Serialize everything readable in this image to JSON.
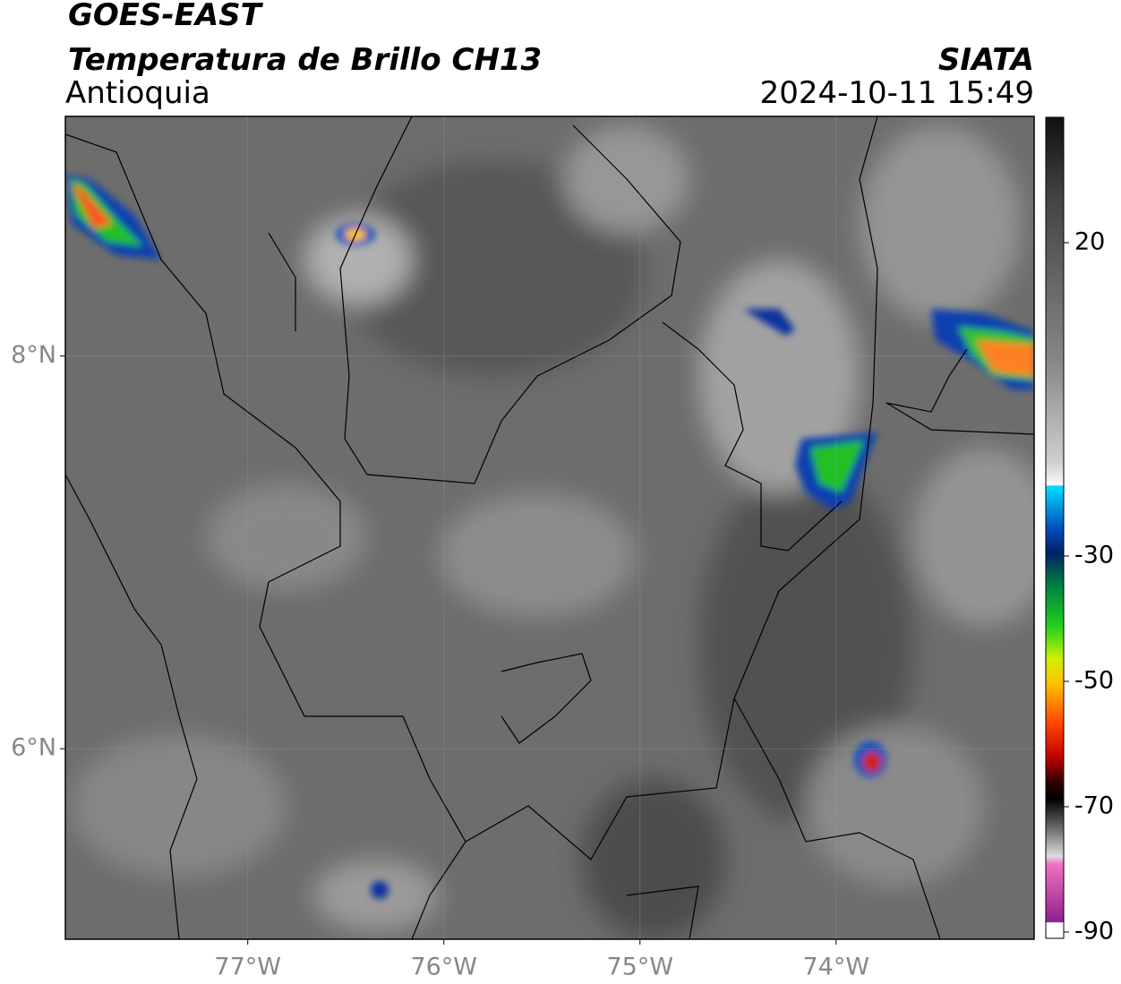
{
  "header": {
    "title": "GOES-EAST",
    "subtitle": "Temperatura de Brillo CH13",
    "region": "Antioquia",
    "source": "SIATA",
    "datetime": "2024-10-11 15:49"
  },
  "map": {
    "xlim": [
      -77.93,
      -72.99
    ],
    "ylim": [
      5.03,
      9.22
    ],
    "xticks": [
      {
        "value": -77,
        "label": "77°W"
      },
      {
        "value": -76,
        "label": "76°W"
      },
      {
        "value": -75,
        "label": "75°W"
      },
      {
        "value": -74,
        "label": "74°W"
      }
    ],
    "yticks": [
      {
        "value": 8,
        "label": "8°N"
      },
      {
        "value": 6,
        "label": "6°N"
      }
    ],
    "grid": true
  },
  "colorbar": {
    "lim": [
      -91,
      40
    ],
    "ticks": [
      20,
      -30,
      -50,
      -70,
      -90
    ]
  }
}
